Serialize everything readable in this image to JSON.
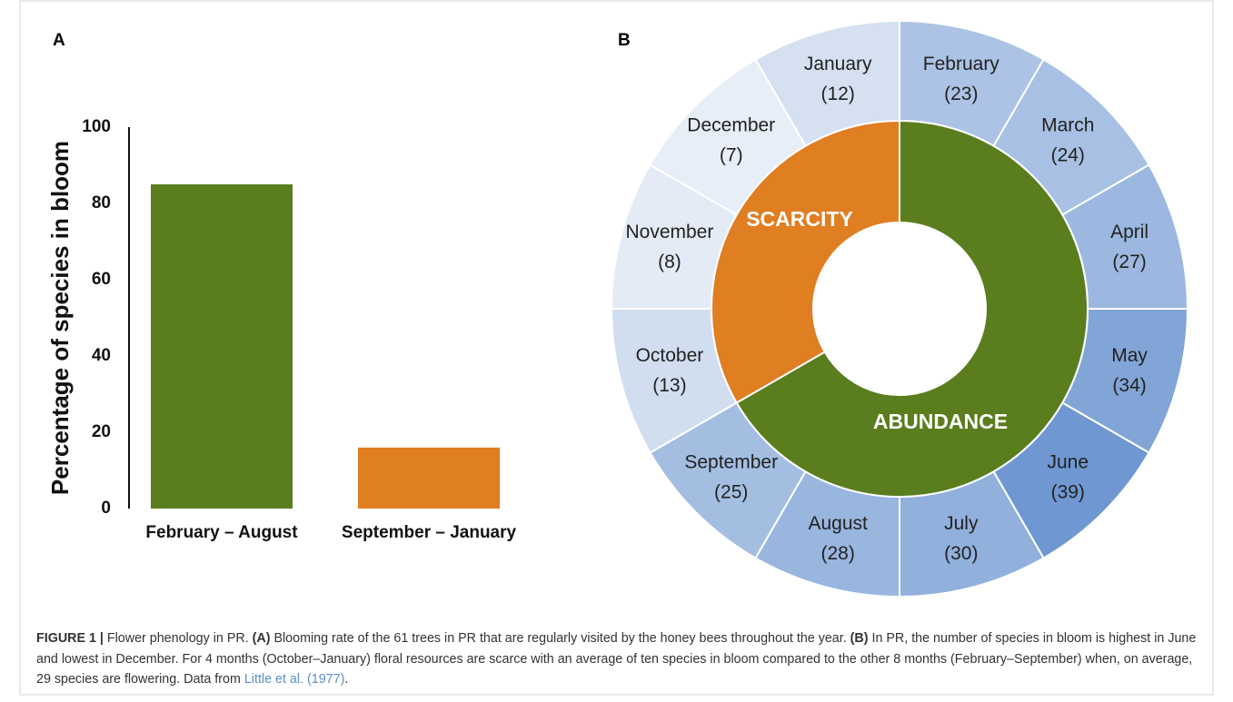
{
  "chart_data": [
    {
      "type": "bar",
      "panel": "A",
      "ylabel": "Percentage of  species in bloom",
      "categories": [
        "February – August",
        "September – January"
      ],
      "values": [
        85,
        16
      ],
      "colors": [
        "#5a7d1e",
        "#e07e22"
      ],
      "ylim": [
        0,
        100
      ],
      "yticks": [
        0,
        20,
        40,
        60,
        80,
        100
      ],
      "grid": false
    },
    {
      "type": "sunburst",
      "panel": "B",
      "categories": [
        "January",
        "February",
        "March",
        "April",
        "May",
        "June",
        "July",
        "August",
        "September",
        "October",
        "November",
        "December"
      ],
      "values": [
        12,
        23,
        24,
        27,
        34,
        39,
        30,
        28,
        25,
        13,
        8,
        7
      ],
      "value_labels": [
        "(12)",
        "(23)",
        "(24)",
        "(27)",
        "(34)",
        "(39)",
        "(30)",
        "(28)",
        "(25)",
        "(13)",
        "(8)",
        "(7)"
      ],
      "color_range": [
        "#e8eef7",
        "#6f98d2"
      ],
      "inner": {
        "categories": [
          "ABUNDANCE",
          "SCARCITY"
        ],
        "values": [
          8,
          4
        ],
        "colors": [
          "#5a7d1e",
          "#e07e22"
        ]
      }
    }
  ],
  "caption": {
    "parts": [
      {
        "text": "FIGURE 1 |",
        "style": "bold"
      },
      {
        "text": " Flower phenology in PR. ",
        "style": "plain"
      },
      {
        "text": "(A)",
        "style": "bold"
      },
      {
        "text": " Blooming rate of the 61 trees in PR that are regularly visited by the honey bees throughout the year. ",
        "style": "plain"
      },
      {
        "text": "(B)",
        "style": "bold"
      },
      {
        "text": " In PR, the number of species in bloom is highest in June and lowest in December. For 4 months (October–January) floral resources are scarce with an average of ten species in bloom compared to the other 8 months (February–September) when, on average, 29 species are flowering. Data from ",
        "style": "plain"
      },
      {
        "text": "Little et al. (1977)",
        "style": "link"
      },
      {
        "text": ".",
        "style": "plain"
      }
    ]
  }
}
